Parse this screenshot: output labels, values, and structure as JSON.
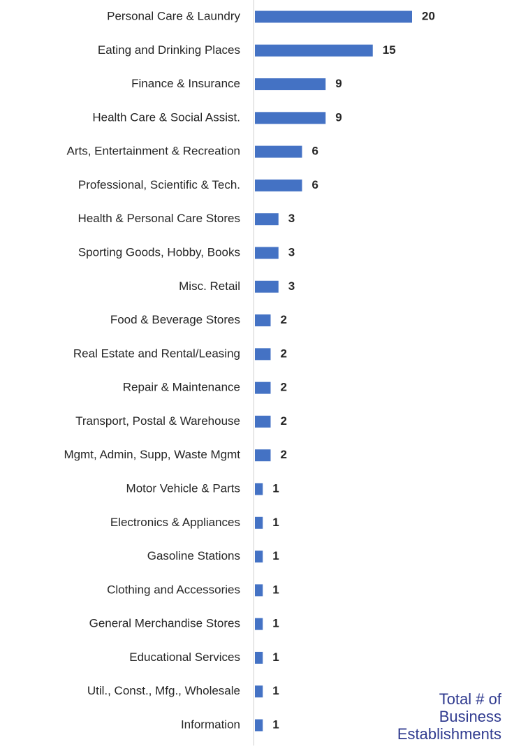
{
  "chart_data": {
    "type": "bar",
    "orientation": "horizontal",
    "categories": [
      "Personal Care & Laundry",
      "Eating and Drinking Places",
      "Finance & Insurance",
      "Health Care & Social Assist.",
      "Arts, Entertainment & Recreation",
      "Professional, Scientific & Tech.",
      "Health & Personal Care Stores",
      "Sporting Goods, Hobby, Books",
      "Misc. Retail",
      "Food & Beverage Stores",
      "Real Estate and Rental/Leasing",
      "Repair & Maintenance",
      "Transport, Postal & Warehouse",
      "Mgmt, Admin, Supp, Waste Mgmt",
      "Motor Vehicle & Parts",
      "Electronics & Appliances",
      "Gasoline Stations",
      "Clothing and Accessories",
      "General Merchandise Stores",
      "Educational Services",
      "Util., Const., Mfg., Wholesale",
      "Information"
    ],
    "values": [
      20,
      15,
      9,
      9,
      6,
      6,
      3,
      3,
      3,
      2,
      2,
      2,
      2,
      2,
      1,
      1,
      1,
      1,
      1,
      1,
      1,
      1
    ],
    "color": "#4472c4",
    "annotation": [
      "Total # of",
      "Business",
      "Establishments"
    ]
  }
}
